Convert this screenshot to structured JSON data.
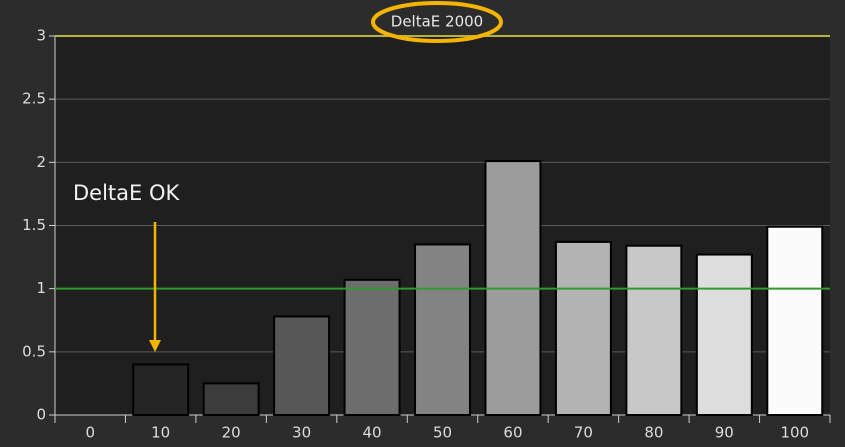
{
  "chart_data": {
    "type": "bar",
    "title": "DeltaE 2000",
    "categories": [
      "0",
      "10",
      "20",
      "30",
      "40",
      "50",
      "60",
      "70",
      "80",
      "90",
      "100"
    ],
    "values": [
      0,
      0.4,
      0.25,
      0.78,
      1.07,
      1.35,
      2.01,
      1.37,
      1.34,
      1.27,
      1.49
    ],
    "colors": [
      "#111111",
      "#252525",
      "#3c3c3c",
      "#575757",
      "#6d6d6d",
      "#838383",
      "#9c9c9c",
      "#b3b3b3",
      "#c8c8c8",
      "#dddddd",
      "#fbfbfb"
    ],
    "ylim": [
      0,
      3
    ],
    "yticks": [
      0,
      0.5,
      1,
      1.5,
      2,
      2.5,
      3
    ],
    "grid": true,
    "reference_lines": [
      {
        "value": 1,
        "color": "#2f9a2f"
      },
      {
        "value": 3,
        "color": "#b4b43c"
      }
    ],
    "annotations": [
      {
        "text": "DeltaE OK"
      }
    ]
  }
}
